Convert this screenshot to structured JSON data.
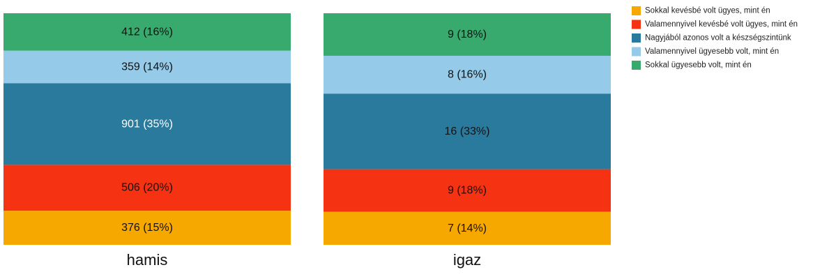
{
  "chart_data": {
    "type": "bar",
    "stacked": true,
    "normalized": true,
    "categories": [
      "hamis",
      "igaz"
    ],
    "series": [
      {
        "name": "Sokkal kevésbé volt ügyes, mint én",
        "color": "#F7A800",
        "values": [
          376,
          7
        ],
        "labels": [
          "376 (15%)",
          "7 (14%)"
        ]
      },
      {
        "name": "Valamennyivel kevésbé volt ügyes, mint én",
        "color": "#F53212",
        "values": [
          506,
          9
        ],
        "labels": [
          "506 (20%)",
          "9 (18%)"
        ]
      },
      {
        "name": "Nagyjából azonos volt a készségszintünk",
        "color": "#2A7A9E",
        "values": [
          901,
          16
        ],
        "labels": [
          "901 (35%)",
          "16 (33%)"
        ]
      },
      {
        "name": "Valamennyivel ügyesebb volt, mint én",
        "color": "#95CBE8",
        "values": [
          359,
          8
        ],
        "labels": [
          "359 (14%)",
          "8 (16%)"
        ]
      },
      {
        "name": "Sokkal ügyesebb volt, mint én",
        "color": "#38AA6E",
        "values": [
          412,
          9
        ],
        "labels": [
          "412 (16%)",
          "9 (18%)"
        ]
      }
    ],
    "label_colors": {
      "hamis": [
        "#111111",
        "#111111",
        "#ffffff",
        "#111111",
        "#111111"
      ],
      "igaz": [
        "#111111",
        "#111111",
        "#111111",
        "#111111",
        "#111111"
      ]
    },
    "legend_position": "top-right",
    "grid": false
  }
}
